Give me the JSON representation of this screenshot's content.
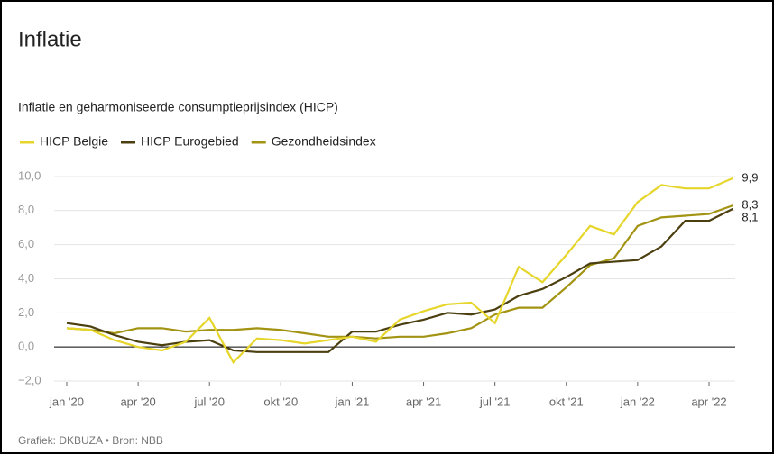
{
  "chart_data": {
    "type": "line",
    "title": "Inflatie",
    "subtitle": "Inflatie en geharmoniseerde consumptieprijsindex (HICP)",
    "source": "Grafiek: DKBUZA • Bron: NBB",
    "categories": [
      "jan '20",
      null,
      null,
      "apr '20",
      null,
      null,
      "jul '20",
      null,
      null,
      "okt '20",
      null,
      null,
      "jan '21",
      null,
      null,
      "apr '21",
      null,
      null,
      "jul '21",
      null,
      null,
      "okt '21",
      null,
      null,
      "jan '22",
      null,
      null,
      "apr '22",
      null
    ],
    "series": [
      {
        "name": "HICP Belgie",
        "color": "#e6d62b",
        "values": [
          1.1,
          1.0,
          0.4,
          0.0,
          -0.2,
          0.3,
          1.7,
          -0.9,
          0.5,
          0.4,
          0.2,
          0.4,
          0.6,
          0.3,
          1.6,
          2.1,
          2.5,
          2.6,
          1.4,
          4.7,
          3.8,
          5.4,
          7.1,
          6.6,
          8.5,
          9.5,
          9.3,
          9.3,
          9.9
        ],
        "value_labels": [
          null,
          null,
          null,
          null,
          null,
          null,
          null,
          null,
          null,
          null,
          null,
          null,
          null,
          null,
          null,
          null,
          null,
          null,
          null,
          null,
          null,
          null,
          null,
          null,
          null,
          null,
          null,
          null,
          "9,9"
        ]
      },
      {
        "name": "HICP Eurogebied",
        "color": "#4b3f0f",
        "values": [
          1.4,
          1.2,
          0.7,
          0.3,
          0.1,
          0.3,
          0.4,
          -0.2,
          -0.3,
          -0.3,
          -0.3,
          -0.3,
          0.9,
          0.9,
          1.3,
          1.6,
          2.0,
          1.9,
          2.2,
          3.0,
          3.4,
          4.1,
          4.9,
          5.0,
          5.1,
          5.9,
          7.4,
          7.4,
          8.1
        ],
        "value_labels": [
          null,
          null,
          null,
          null,
          null,
          null,
          null,
          null,
          null,
          null,
          null,
          null,
          null,
          null,
          null,
          null,
          null,
          null,
          null,
          null,
          null,
          null,
          null,
          null,
          null,
          null,
          null,
          null,
          "8,1"
        ]
      },
      {
        "name": "Gezondheidsindex",
        "color": "#a39312",
        "values": [
          1.1,
          1.0,
          0.8,
          1.1,
          1.1,
          0.9,
          1.0,
          1.0,
          1.1,
          1.0,
          0.8,
          0.6,
          0.6,
          0.5,
          0.6,
          0.6,
          0.8,
          1.1,
          1.9,
          2.3,
          2.3,
          3.5,
          4.8,
          5.2,
          7.1,
          7.6,
          7.7,
          7.8,
          8.3
        ],
        "value_labels": [
          null,
          null,
          null,
          null,
          null,
          null,
          null,
          null,
          null,
          null,
          null,
          null,
          null,
          null,
          null,
          null,
          null,
          null,
          null,
          null,
          null,
          null,
          null,
          null,
          null,
          null,
          null,
          null,
          "8,3"
        ]
      }
    ],
    "ylim": [
      -2,
      10.5
    ],
    "yticks": [
      {
        "value": -2,
        "label": "−2,0"
      },
      {
        "value": 0,
        "label": "0,0"
      },
      {
        "value": 2,
        "label": "2,0"
      },
      {
        "value": 4,
        "label": "4,0"
      },
      {
        "value": 6,
        "label": "6,0"
      },
      {
        "value": 8,
        "label": "8,0"
      },
      {
        "value": 10,
        "label": "10,0"
      }
    ],
    "grid": true
  }
}
